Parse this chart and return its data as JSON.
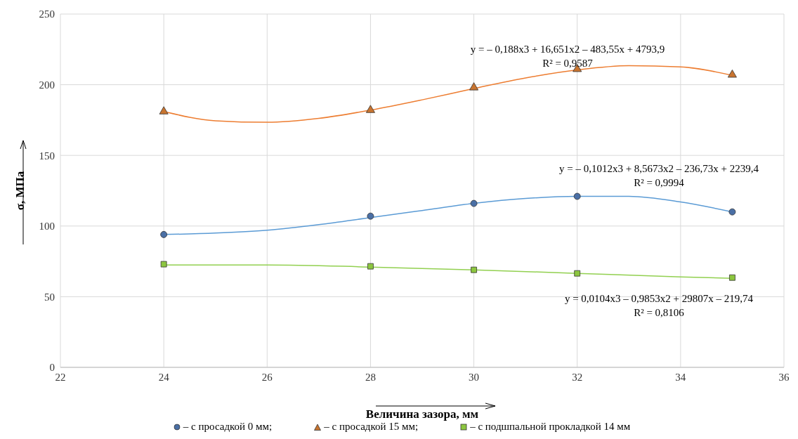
{
  "chart_data": {
    "type": "scatter",
    "xlabel": "Величина зазора, мм",
    "ylabel": "σ, МПа",
    "xlim": [
      22,
      36
    ],
    "xticks": [
      22,
      24,
      26,
      28,
      30,
      32,
      34,
      36
    ],
    "ylim": [
      0,
      250
    ],
    "yticks": [
      0,
      50,
      100,
      150,
      200,
      250
    ],
    "grid": true,
    "legend": "bottom",
    "series": [
      {
        "name": "– с просадкой 0 мм;",
        "color": "#4a6fa5",
        "marker": "circle",
        "x": [
          24,
          28,
          30,
          32,
          35
        ],
        "values": [
          94,
          107,
          116,
          121,
          110
        ]
      },
      {
        "name": "– с просадкой 15 мм;",
        "color": "#c8742f",
        "marker": "triangle",
        "x": [
          24,
          28,
          30,
          32,
          35
        ],
        "values": [
          181,
          182,
          198,
          211,
          207
        ]
      },
      {
        "name": "– с подшпальной прокладкой 14 мм",
        "color": "#8cc63f",
        "marker": "square",
        "x": [
          24,
          28,
          30,
          32,
          35
        ],
        "values": [
          73,
          71.5,
          69,
          66.5,
          63.5
        ]
      },
      {
        "type": "line",
        "color": "#5b9bd5",
        "marker": "none",
        "x": [
          24,
          25,
          26,
          27,
          28,
          29,
          30,
          31,
          32,
          33,
          34,
          35
        ],
        "values": [
          94,
          95,
          97,
          101,
          106,
          111,
          116,
          119.5,
          121,
          121,
          117,
          110
        ]
      },
      {
        "type": "line",
        "color": "#ed7d31",
        "marker": "none",
        "x": [
          24,
          25,
          26,
          27,
          28,
          29,
          30,
          31,
          32,
          33,
          34,
          35
        ],
        "values": [
          181,
          174.5,
          173.4,
          176.2,
          182,
          189.3,
          197.3,
          204.8,
          210.5,
          213.5,
          212.6,
          206.6
        ]
      },
      {
        "type": "line",
        "color": "#92d050",
        "marker": "none",
        "x": [
          24,
          26,
          28,
          30,
          32,
          34,
          35
        ],
        "values": [
          72.5,
          72.5,
          71,
          69,
          66.5,
          64,
          63
        ]
      }
    ],
    "annotations": [
      "y = – 0,188x3 + 16,651x2 – 483,55x + 4793,9",
      "R² = 0,9587",
      "y = – 0,1012x3 + 8,5673x2 – 236,73x + 2239,4",
      "R² = 0,9994",
      "y = 0,0104x3 – 0,9853x2 + 29807x – 219,74",
      "R² = 0,8106"
    ]
  }
}
